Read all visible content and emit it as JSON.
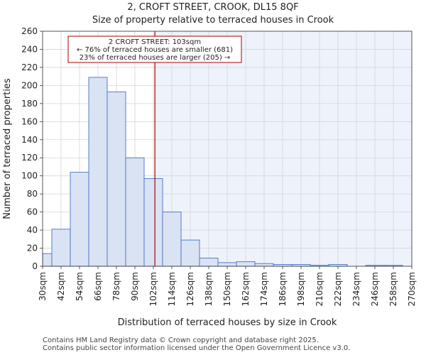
{
  "title": {
    "line1": "2, CROFT STREET, CROOK, DL15 8QF",
    "line2": "Size of property relative to terraced houses in Crook"
  },
  "footer": {
    "line1": "Contains HM Land Registry data © Crown copyright and database right 2025.",
    "line2": "Contains public sector information licensed under the Open Government Licence v3.0."
  },
  "colors": {
    "bar_fill": "#dae3f3",
    "bar_stroke": "#4472c4",
    "highlight_bg": "#eef2fb",
    "marker_line": "#aa0000",
    "annotation_border": "#aa0000"
  },
  "chart_data": {
    "type": "bar",
    "title": "Size of property relative to terraced houses in Crook",
    "xlabel": "Distribution of terraced houses by size in Crook",
    "ylabel": "Number of terraced properties",
    "ylim": [
      0,
      260
    ],
    "yticks": [
      0,
      20,
      40,
      60,
      80,
      100,
      120,
      140,
      160,
      180,
      200,
      220,
      240,
      260
    ],
    "x_range": [
      30,
      270
    ],
    "bin_width": 12,
    "grid": true,
    "tick_labels": [
      "30sqm",
      "42sqm",
      "54sqm",
      "66sqm",
      "78sqm",
      "90sqm",
      "102sqm",
      "114sqm",
      "126sqm",
      "138sqm",
      "150sqm",
      "162sqm",
      "174sqm",
      "186sqm",
      "198sqm",
      "210sqm",
      "222sqm",
      "234sqm",
      "246sqm",
      "258sqm",
      "270sqm"
    ],
    "bins": [
      {
        "start": 24,
        "value": 14
      },
      {
        "start": 36,
        "value": 41
      },
      {
        "start": 48,
        "value": 104
      },
      {
        "start": 60,
        "value": 209
      },
      {
        "start": 72,
        "value": 193
      },
      {
        "start": 84,
        "value": 120
      },
      {
        "start": 96,
        "value": 97
      },
      {
        "start": 108,
        "value": 60
      },
      {
        "start": 120,
        "value": 29
      },
      {
        "start": 132,
        "value": 9
      },
      {
        "start": 144,
        "value": 4
      },
      {
        "start": 156,
        "value": 5
      },
      {
        "start": 168,
        "value": 3
      },
      {
        "start": 180,
        "value": 2
      },
      {
        "start": 192,
        "value": 2
      },
      {
        "start": 204,
        "value": 1
      },
      {
        "start": 216,
        "value": 2
      },
      {
        "start": 228,
        "value": 0
      },
      {
        "start": 240,
        "value": 1
      },
      {
        "start": 252,
        "value": 1
      }
    ],
    "marker": {
      "value": 103,
      "label": "2 CROFT STREET: 103sqm",
      "smaller_text": "← 76% of terraced houses are smaller (681)",
      "larger_text": "23% of terraced houses are larger (205) →"
    }
  }
}
